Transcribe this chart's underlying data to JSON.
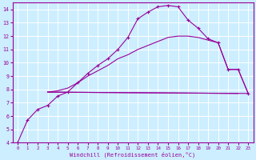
{
  "background_color": "#cceeff",
  "grid_color": "#ffffff",
  "line_color": "#990099",
  "xlabel": "Windchill (Refroidissement éolien,°C)",
  "xlim": [
    -0.5,
    23.5
  ],
  "ylim": [
    4,
    14.5
  ],
  "xticks": [
    0,
    1,
    2,
    3,
    4,
    5,
    6,
    7,
    8,
    9,
    10,
    11,
    12,
    13,
    14,
    15,
    16,
    17,
    18,
    19,
    20,
    21,
    22,
    23
  ],
  "yticks": [
    4,
    5,
    6,
    7,
    8,
    9,
    10,
    11,
    12,
    13,
    14
  ],
  "curve1_x": [
    0,
    1,
    2,
    3,
    4,
    5,
    6,
    7,
    8,
    9,
    10,
    11,
    12,
    13,
    14,
    15,
    16,
    17,
    18,
    19,
    20,
    21,
    22,
    23
  ],
  "curve1_y": [
    4.0,
    5.7,
    6.5,
    6.8,
    7.5,
    7.8,
    8.5,
    9.2,
    9.8,
    10.3,
    11.0,
    11.9,
    13.3,
    13.8,
    14.2,
    14.3,
    14.2,
    13.2,
    12.6,
    11.8,
    11.5,
    9.5,
    9.5,
    7.7
  ],
  "curve2_x": [
    3,
    23
  ],
  "curve2_y": [
    7.8,
    7.7
  ],
  "curve3_x": [
    3,
    4,
    5,
    6,
    7,
    8,
    9,
    10,
    11,
    12,
    13,
    14,
    15,
    16,
    17,
    18,
    19,
    20,
    21,
    22,
    23
  ],
  "curve3_y": [
    7.8,
    7.9,
    8.1,
    8.5,
    9.0,
    9.4,
    9.8,
    10.3,
    10.6,
    11.0,
    11.3,
    11.6,
    11.9,
    12.0,
    12.0,
    11.9,
    11.7,
    11.5,
    9.5,
    9.5,
    7.7
  ],
  "curve4_x": [
    3,
    22
  ],
  "curve4_y": [
    7.8,
    7.7
  ]
}
